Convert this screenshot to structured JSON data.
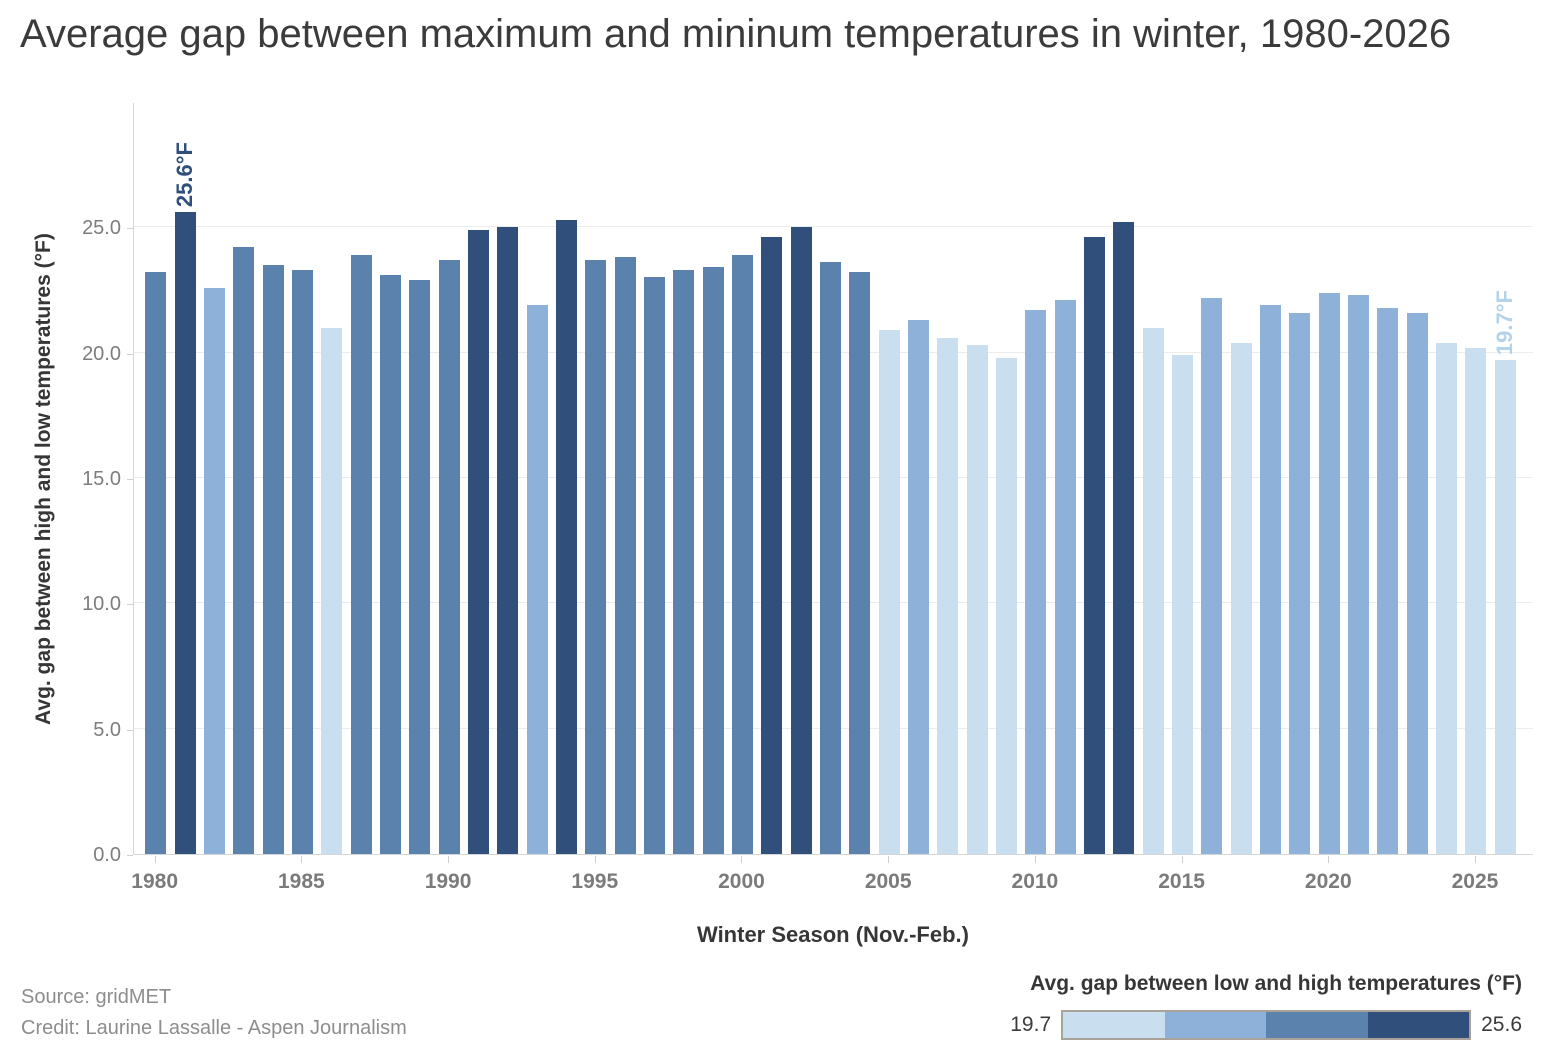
{
  "title": "Average gap between maximum and mininum temperatures in winter, 1980-2026",
  "y_axis": {
    "title": "Avg. gap between high and low temperatures (°F)",
    "tick_labels": [
      "0.0",
      "5.0",
      "10.0",
      "15.0",
      "20.0",
      "25.0"
    ],
    "tick_values": [
      0,
      5,
      10,
      15,
      20,
      25
    ]
  },
  "x_axis": {
    "title": "Winter Season (Nov.-Feb.)",
    "tick_years": [
      1980,
      1985,
      1990,
      1995,
      2000,
      2005,
      2010,
      2015,
      2020,
      2025
    ]
  },
  "annotations": {
    "max": {
      "year": 1981,
      "value": 25.6,
      "label": "25.6°F",
      "color": "#2f4f7b"
    },
    "min": {
      "year": 2026,
      "value": 19.7,
      "label": "19.7°F",
      "color": "#b3d3ea"
    }
  },
  "legend": {
    "title": "Avg. gap between low and high temperatures (°F)",
    "min_label": "19.7",
    "max_label": "25.6",
    "colors": [
      "#c9dff0",
      "#8db1d8",
      "#5b81ad",
      "#30507b"
    ]
  },
  "footer": {
    "source": "Source: gridMET",
    "credit": "Credit: Laurine Lassalle - Aspen Journalism"
  },
  "chart_data": {
    "type": "bar",
    "title": "Average gap between maximum and mininum temperatures in winter, 1980-2026",
    "xlabel": "Winter Season (Nov.-Feb.)",
    "ylabel": "Avg. gap between high and low temperatures (°F)",
    "ylim": [
      0,
      30
    ],
    "grid": "horizontal",
    "legend_position": "bottom-right",
    "colorbar_range": [
      19.7,
      25.6
    ],
    "x": [
      1980,
      1981,
      1982,
      1983,
      1984,
      1985,
      1986,
      1987,
      1988,
      1989,
      1990,
      1991,
      1992,
      1993,
      1994,
      1995,
      1996,
      1997,
      1998,
      1999,
      2000,
      2001,
      2002,
      2003,
      2004,
      2005,
      2006,
      2007,
      2008,
      2009,
      2010,
      2011,
      2012,
      2013,
      2014,
      2015,
      2016,
      2017,
      2018,
      2019,
      2020,
      2021,
      2022,
      2023,
      2024,
      2025,
      2026
    ],
    "values": [
      23.2,
      25.6,
      22.6,
      24.2,
      23.5,
      23.3,
      21.0,
      23.9,
      23.1,
      22.9,
      23.7,
      24.9,
      25.0,
      21.9,
      25.3,
      23.7,
      23.8,
      23.0,
      23.3,
      23.4,
      23.9,
      24.6,
      25.0,
      23.6,
      23.2,
      20.9,
      21.3,
      20.6,
      20.3,
      19.8,
      21.7,
      22.1,
      24.6,
      25.2,
      21.0,
      19.9,
      22.2,
      20.4,
      21.9,
      21.6,
      22.4,
      22.3,
      21.8,
      21.6,
      20.4,
      20.2,
      19.7
    ],
    "color_tier": [
      3,
      4,
      2,
      3,
      3,
      3,
      1,
      3,
      3,
      3,
      3,
      4,
      4,
      2,
      4,
      3,
      3,
      3,
      3,
      3,
      3,
      4,
      4,
      3,
      3,
      1,
      2,
      1,
      1,
      1,
      2,
      2,
      4,
      4,
      1,
      1,
      2,
      1,
      2,
      2,
      2,
      2,
      2,
      2,
      1,
      1,
      1
    ],
    "tier_colors": {
      "1": "#c9dff0",
      "2": "#8db1d8",
      "3": "#5b81ad",
      "4": "#30507b"
    }
  }
}
